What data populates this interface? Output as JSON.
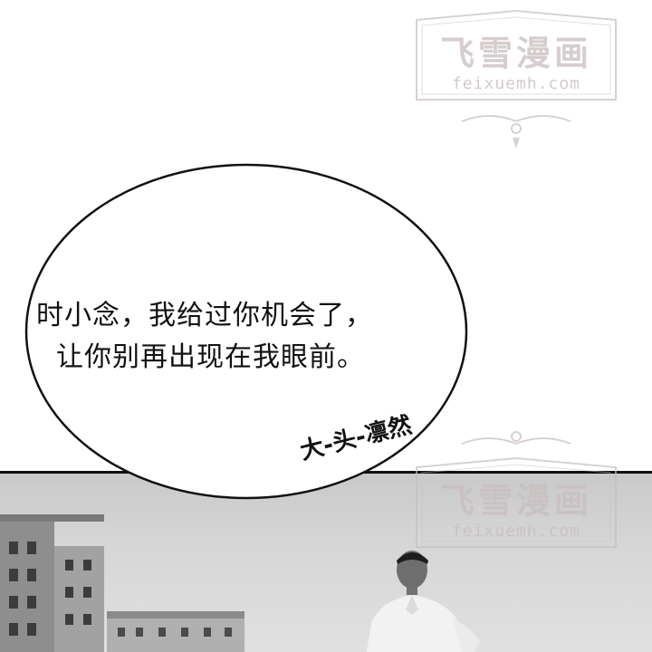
{
  "dialogue": {
    "line1": "时小念，我给过你机会了，",
    "line2": "让你别再出现在我眼前。"
  },
  "credit": "大-头-凛然",
  "watermark": {
    "title": "飞雪漫画",
    "url": "feixuemh.com"
  },
  "colors": {
    "ink": "#111111",
    "watermark": "#c8bebe",
    "photo_sky": "#d6d6d6"
  }
}
